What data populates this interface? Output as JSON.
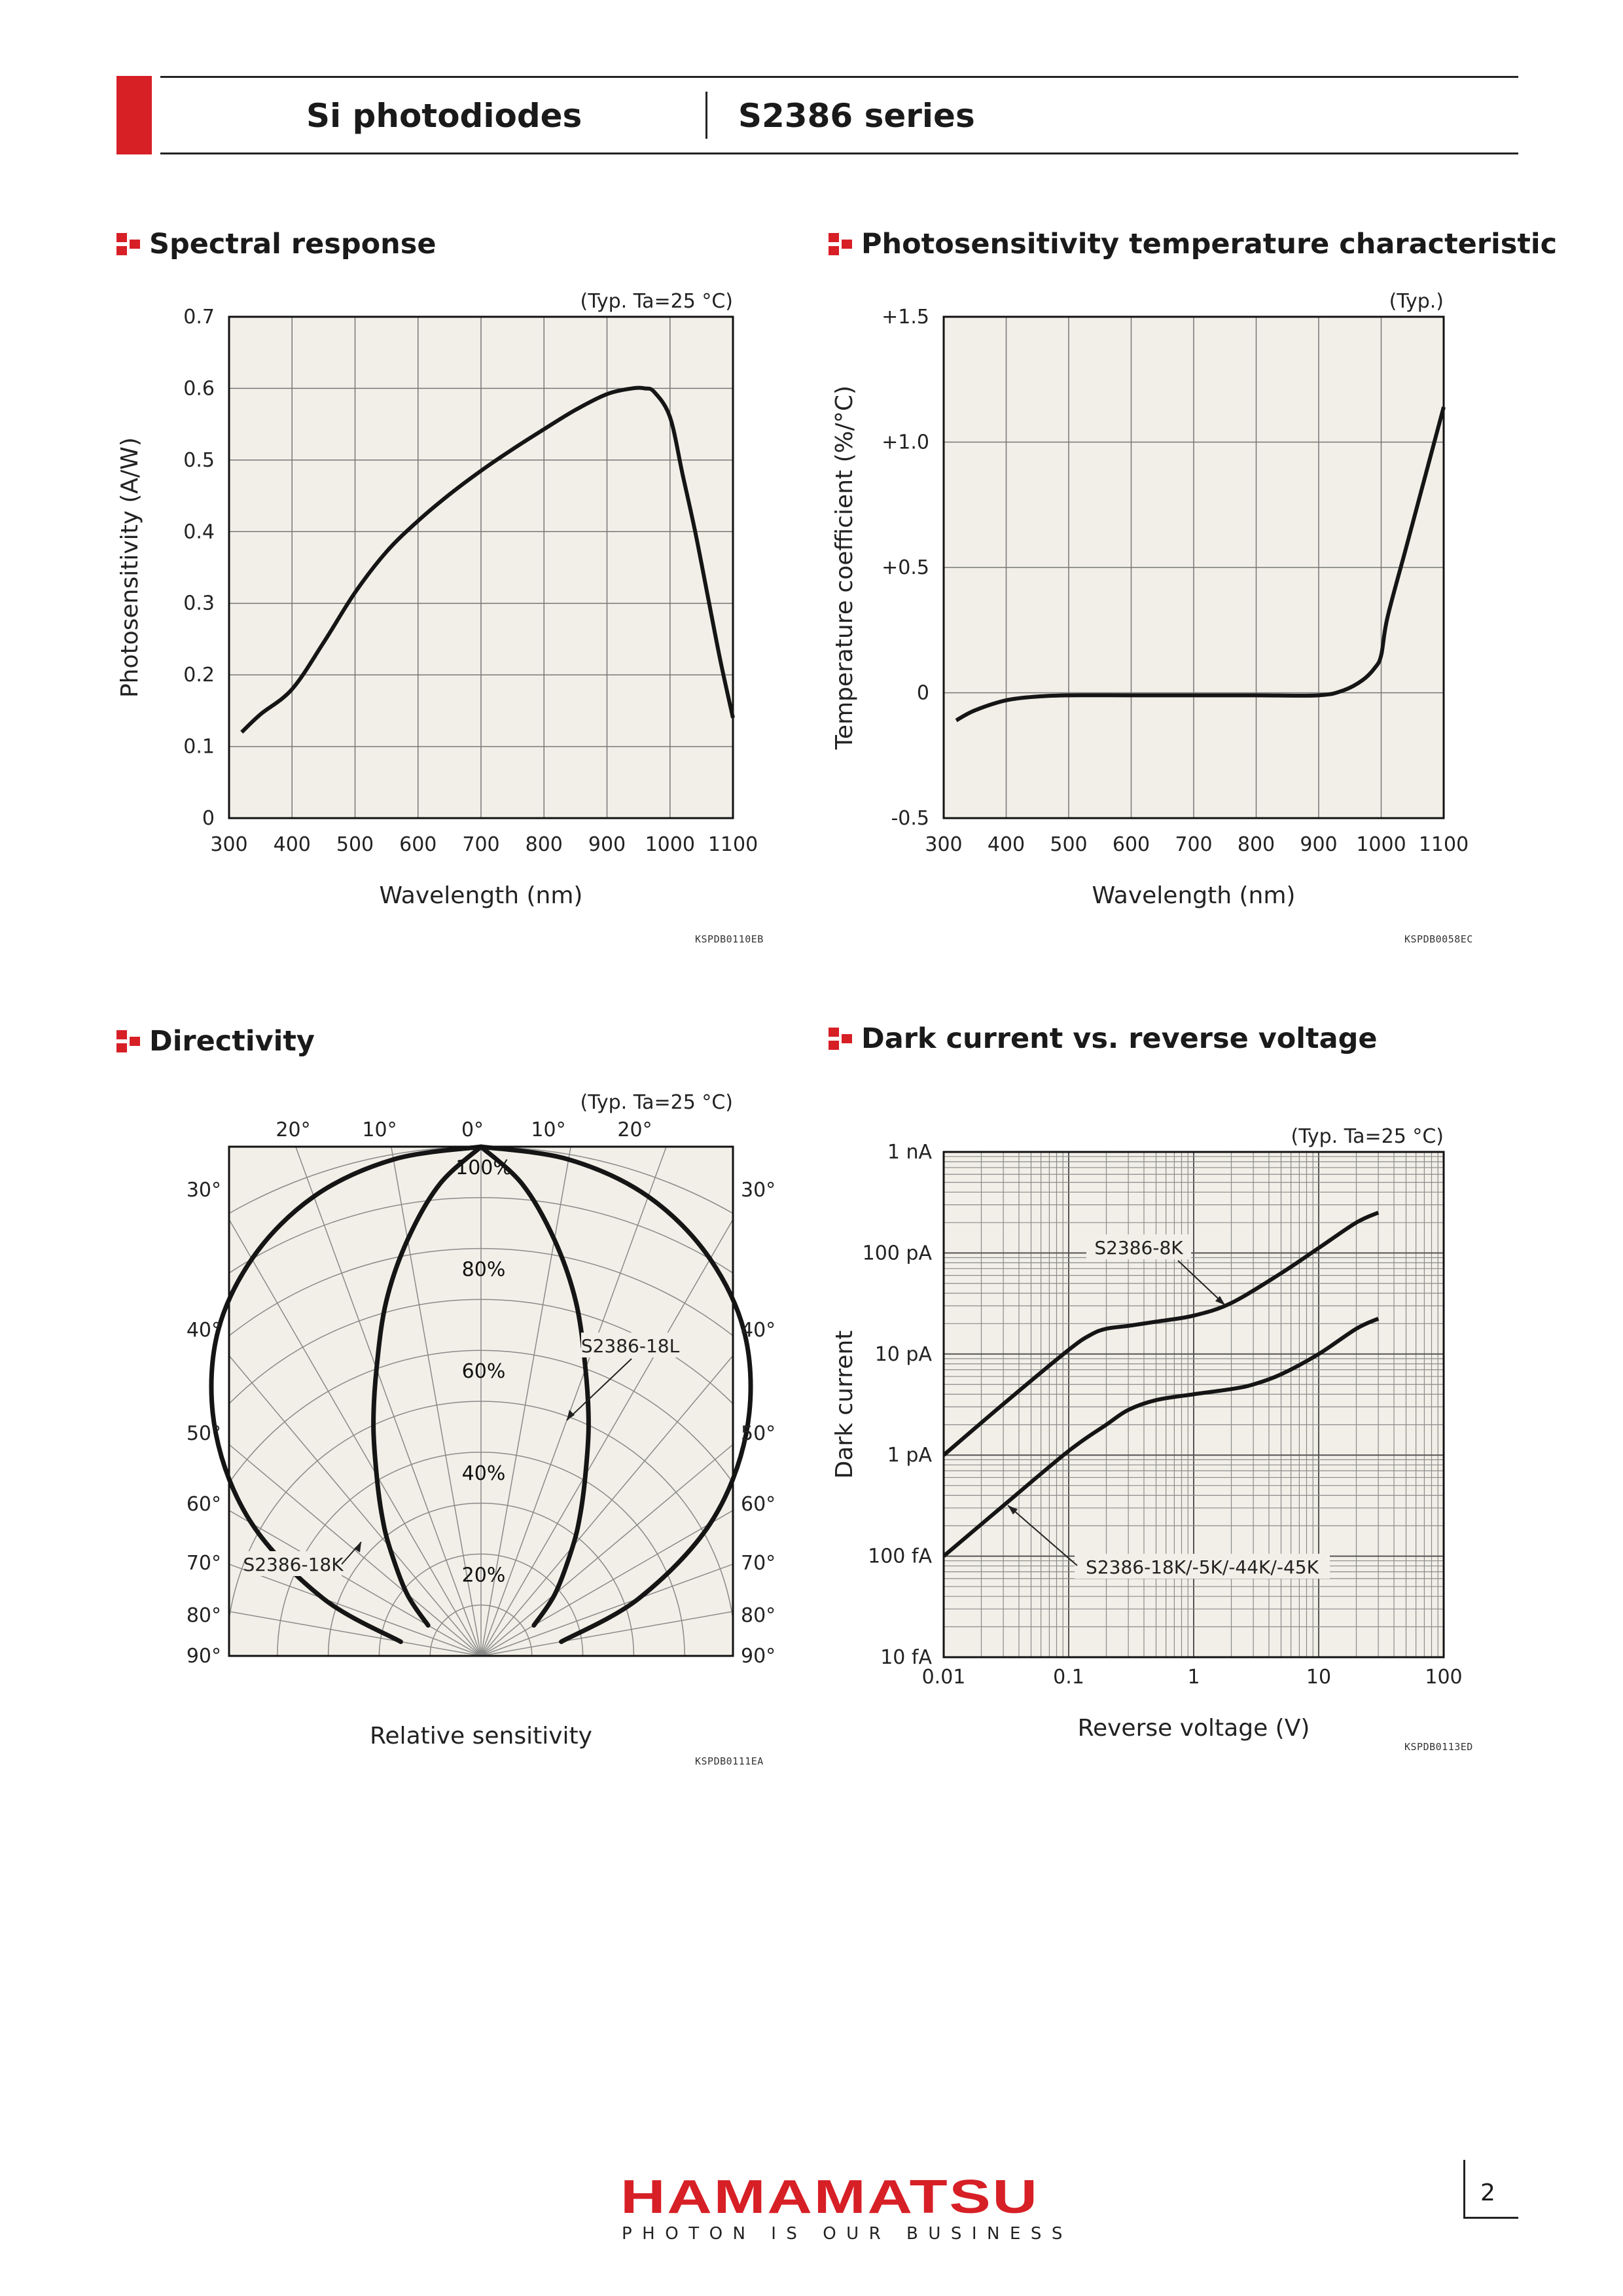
{
  "header": {
    "product_family": "Si photodiodes",
    "series": "S2386 series"
  },
  "sections": {
    "spectral": "Spectral response",
    "temperature": "Photosensitivity temperature characteristic",
    "directivity": "Directivity",
    "dark": "Dark current vs. reverse voltage"
  },
  "chart_data": [
    {
      "id": "spectral",
      "type": "line",
      "title": "Spectral response",
      "note": "(Typ. Ta=25 °C)",
      "xlabel": "Wavelength (nm)",
      "ylabel": "Photosensitivity (A/W)",
      "xlim": [
        300,
        1100
      ],
      "ylim": [
        0,
        0.7
      ],
      "x_ticks": [
        "300",
        "400",
        "500",
        "600",
        "700",
        "800",
        "900",
        "1000",
        "1100"
      ],
      "y_ticks": [
        "0",
        "0.1",
        "0.2",
        "0.3",
        "0.4",
        "0.5",
        "0.6",
        "0.7"
      ],
      "grid": true,
      "series": [
        {
          "x": [
            320,
            350,
            400,
            450,
            500,
            550,
            600,
            650,
            700,
            750,
            800,
            850,
            900,
            940,
            960,
            975,
            1000,
            1020,
            1040,
            1060,
            1080,
            1100
          ],
          "y": [
            0.12,
            0.145,
            0.18,
            0.245,
            0.315,
            0.372,
            0.415,
            0.452,
            0.485,
            0.515,
            0.543,
            0.57,
            0.592,
            0.6,
            0.6,
            0.595,
            0.56,
            0.48,
            0.4,
            0.31,
            0.22,
            0.14
          ]
        }
      ],
      "code": "KSPDB0110EB"
    },
    {
      "id": "temperature",
      "type": "line",
      "title": "Photosensitivity temperature characteristic",
      "note": "(Typ.)",
      "xlabel": "Wavelength (nm)",
      "ylabel": "Temperature coefficient (%/°C)",
      "xlim": [
        300,
        1100
      ],
      "ylim": [
        -0.5,
        1.5
      ],
      "x_ticks": [
        "300",
        "400",
        "500",
        "600",
        "700",
        "800",
        "900",
        "1000",
        "1100"
      ],
      "y_ticks": [
        "-0.5",
        "0",
        "+0.5",
        "+1.0",
        "+1.5"
      ],
      "grid": true,
      "series": [
        {
          "x": [
            320,
            350,
            400,
            450,
            500,
            600,
            700,
            800,
            900,
            940,
            970,
            990,
            1000,
            1010,
            1040,
            1070,
            1100
          ],
          "y": [
            -0.11,
            -0.07,
            -0.03,
            -0.015,
            -0.01,
            -0.01,
            -0.01,
            -0.01,
            -0.01,
            0.01,
            0.05,
            0.1,
            0.15,
            0.3,
            0.58,
            0.86,
            1.14
          ]
        }
      ],
      "code": "KSPDB0058EC"
    },
    {
      "id": "directivity",
      "type": "polar",
      "title": "Directivity",
      "note": "(Typ. Ta=25 °C)",
      "xlabel": "Relative sensitivity",
      "angle_labels_top": [
        "20°",
        "10°",
        "0°",
        "10°",
        "20°"
      ],
      "angle_labels_side": [
        "30°",
        "40°",
        "50°",
        "60°",
        "70°",
        "80°",
        "90°"
      ],
      "radial_labels": [
        "100%",
        "80%",
        "60%",
        "40%",
        "20%"
      ],
      "grid": true,
      "series": [
        {
          "name": "S2386-18K",
          "angle_deg": [
            0,
            10,
            20,
            30,
            40,
            50,
            60,
            70,
            80
          ],
          "relative": [
            100,
            99,
            96,
            90,
            81,
            68,
            52,
            33,
            16
          ]
        },
        {
          "name": "S2386-18L",
          "angle_deg": [
            0,
            5,
            10,
            15,
            20,
            25,
            30,
            35,
            40,
            50,
            60
          ],
          "relative": [
            100,
            93,
            83,
            72,
            60,
            50,
            41,
            34,
            28,
            19,
            12
          ]
        }
      ],
      "code": "KSPDB0111EA"
    },
    {
      "id": "dark",
      "type": "line",
      "title": "Dark current vs. reverse voltage",
      "note": "(Typ. Ta=25 °C)",
      "xlabel": "Reverse voltage (V)",
      "ylabel": "Dark current",
      "x_scale": "log",
      "y_scale": "log",
      "xlim": [
        0.01,
        100
      ],
      "ylim": [
        "10 fA",
        "1 nA"
      ],
      "x_ticks": [
        "0.01",
        "0.1",
        "1",
        "10",
        "100"
      ],
      "y_ticks": [
        "10 fA",
        "100 fA",
        "1 pA",
        "10 pA",
        "100 pA",
        "1 nA"
      ],
      "grid": true,
      "series": [
        {
          "name": "S2386-8K",
          "x": [
            0.01,
            0.03,
            0.1,
            0.15,
            0.2,
            0.3,
            0.5,
            1,
            2,
            5,
            10,
            20,
            30
          ],
          "y": [
            "1 pA",
            "3.2 pA",
            "11 pA",
            "15.5 pA",
            "17.8 pA",
            "19 pA",
            "20.9 pA",
            "24 pA",
            "32 pA",
            "63 pA",
            "112 pA",
            "200 pA",
            "251 pA"
          ]
        },
        {
          "name": "S2386-18K/-5K/-44K/-45K",
          "x": [
            0.01,
            0.03,
            0.1,
            0.2,
            0.3,
            0.5,
            1,
            2,
            3,
            5,
            10,
            20,
            30
          ],
          "y": [
            "100 fA",
            "316 fA",
            "1.1 pA",
            "2 pA",
            "2.8 pA",
            "3.5 pA",
            "4 pA",
            "4.5 pA",
            "5 pA",
            "6.3 pA",
            "10 pA",
            "17.8 pA",
            "22.4 pA"
          ]
        }
      ],
      "code": "KSPDB0113ED"
    }
  ],
  "footer": {
    "brand": "HAMAMATSU",
    "tagline": "PHOTON IS OUR BUSINESS",
    "page": "2"
  }
}
